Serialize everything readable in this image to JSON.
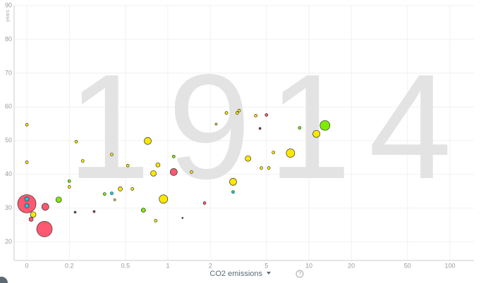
{
  "chart_data": {
    "type": "scatter",
    "xscale": "symlog",
    "year": "1914",
    "xlabel": "CO2 emissions",
    "ylabel": "years",
    "help_icon": "?",
    "xlim": [
      -0.06,
      148
    ],
    "ylim": [
      14.5,
      90
    ],
    "xticks": [
      0,
      0.2,
      0.5,
      1,
      2,
      5,
      10,
      20,
      50,
      100
    ],
    "yticks": [
      20,
      30,
      40,
      50,
      60,
      70,
      80,
      90
    ],
    "grid": true,
    "x": [
      0,
      0.083,
      0.087,
      0.03,
      0.02,
      0,
      0,
      0,
      0,
      0.15,
      0.2,
      0.2,
      0.224,
      0.249,
      0.22,
      0.3,
      0.356,
      0.4,
      0.4,
      0.42,
      0.46,
      0.52,
      0.56,
      0.67,
      0.72,
      0.79,
      0.85,
      0.82,
      0.93,
      1.1,
      1.1,
      1.27,
      1.47,
      1.82,
      2.2,
      2.6,
      2.9,
      2.9,
      3.1,
      3.2,
      3.7,
      4.2,
      4.5,
      4.6,
      5,
      5.2,
      5.6,
      7.4,
      8.6,
      11.3,
      13
    ],
    "y": [
      31.3,
      23.8,
      30.4,
      28.1,
      26.7,
      32.7,
      30.7,
      54.7,
      43.6,
      32.5,
      38,
      36.3,
      49.7,
      44,
      28.8,
      29,
      34.2,
      45.9,
      34.4,
      32.5,
      35.7,
      42.6,
      35.7,
      29.4,
      49.9,
      40.3,
      42.8,
      26.3,
      32.7,
      40.7,
      45.3,
      27.1,
      40.7,
      31.5,
      54.9,
      58.2,
      37.8,
      34.8,
      58.2,
      58.9,
      44.7,
      57.4,
      53.6,
      41.9,
      57.6,
      41.9,
      46.5,
      46.3,
      53.8,
      52,
      54.5
    ],
    "sizes": [
      13,
      11,
      5,
      4,
      3,
      3,
      3,
      2,
      2,
      4,
      2,
      2,
      2,
      2,
      1.5,
      1.5,
      2,
      2,
      2,
      1.5,
      3,
      2,
      2,
      3,
      5,
      4,
      3,
      2,
      6,
      5,
      2,
      1,
      2,
      2,
      1.5,
      2,
      5,
      2,
      2,
      2,
      4,
      2,
      1.5,
      2,
      2,
      2,
      2,
      6,
      2,
      5,
      7
    ],
    "colors": [
      "#ff5872",
      "#ff5872",
      "#ff5872",
      "#ffe700",
      "#ff5872",
      "#00d5e9",
      "#00d5e9",
      "#ffe700",
      "#ffe700",
      "#7feb00",
      "#7feb00",
      "#ffe700",
      "#ffe700",
      "#ffe700",
      "#8a4a5a",
      "#a04070",
      "#7feb00",
      "#ffe700",
      "#00d5e9",
      "#ffe700",
      "#ffe700",
      "#ffe700",
      "#ffe700",
      "#7feb00",
      "#ffe700",
      "#ffe700",
      "#ffe700",
      "#ffe700",
      "#ffe700",
      "#ff5872",
      "#7feb00",
      "#8a4a5a",
      "#ffe700",
      "#ff5872",
      "#ffe700",
      "#ffe700",
      "#ffe700",
      "#00d5e9",
      "#ffe700",
      "#ffe700",
      "#ffe700",
      "#ffe700",
      "#a04070",
      "#ffe700",
      "#ff5872",
      "#ffe700",
      "#ffe700",
      "#ffe700",
      "#7feb00",
      "#ffe700",
      "#7feb00"
    ]
  }
}
